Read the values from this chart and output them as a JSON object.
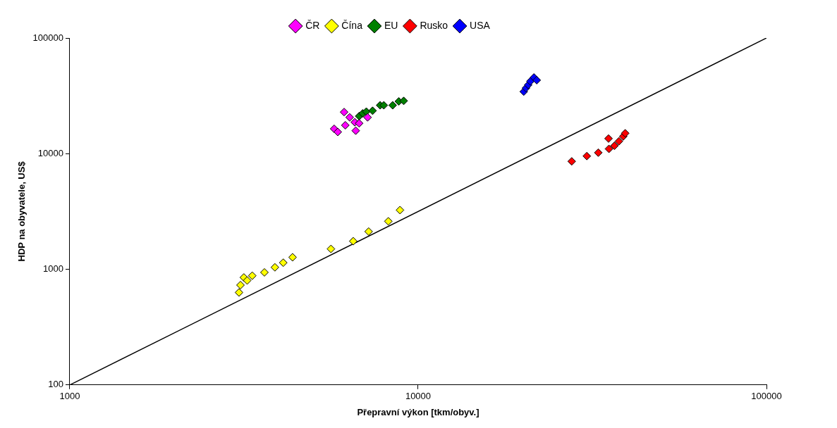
{
  "chart_data": {
    "type": "scatter",
    "xlabel": "Přepravní výkon [tkm/obyv.]",
    "ylabel": "HDP na obyvatele, US$",
    "log": "xy",
    "grid": false,
    "legend": "top",
    "marker": "diamond",
    "xlim": [
      1000,
      100000
    ],
    "ylim": [
      100,
      100000
    ],
    "xticks": [
      1000,
      10000,
      100000
    ],
    "yticks": [
      100,
      1000,
      10000,
      100000
    ],
    "series": [
      {
        "name": "ČR",
        "color": "#ff00ff",
        "x": [
          5740,
          5880,
          6180,
          6130,
          6360,
          6580,
          6620,
          6770,
          7160
        ],
        "values": [
          16400,
          15400,
          17600,
          22900,
          20600,
          18700,
          15800,
          18300,
          20600
        ]
      },
      {
        "name": "Čína",
        "color": "#ffff00",
        "x": [
          3060,
          3090,
          3160,
          3230,
          3340,
          3620,
          3880,
          4100,
          4360,
          5620,
          6510,
          7210,
          8210,
          8870
        ],
        "values": [
          630,
          730,
          850,
          800,
          880,
          940,
          1040,
          1140,
          1270,
          1500,
          1750,
          2120,
          2600,
          3250
        ]
      },
      {
        "name": "EU",
        "color": "#008000",
        "x": [
          6770,
          6930,
          7100,
          7400,
          7780,
          7970,
          8450,
          8800,
          9090
        ],
        "values": [
          21100,
          22300,
          23100,
          23500,
          26200,
          26200,
          26200,
          28300,
          28600
        ]
      },
      {
        "name": "Rusko",
        "color": "#ff0000",
        "x": [
          27600,
          30500,
          32900,
          35200,
          35300,
          36600,
          37700,
          38800,
          39300
        ],
        "values": [
          8580,
          9530,
          10200,
          13500,
          11000,
          11700,
          12800,
          14100,
          15000
        ]
      },
      {
        "name": "USA",
        "color": "#0000ff",
        "x": [
          20100,
          20400,
          20700,
          21000,
          21500,
          21900
        ],
        "values": [
          34400,
          36900,
          39300,
          42200,
          45600,
          43200
        ]
      },
      {
        "type": "line",
        "marker": "none",
        "color": "#000000",
        "x": [
          1000,
          100000
        ],
        "values": [
          100,
          100000
        ]
      }
    ]
  }
}
